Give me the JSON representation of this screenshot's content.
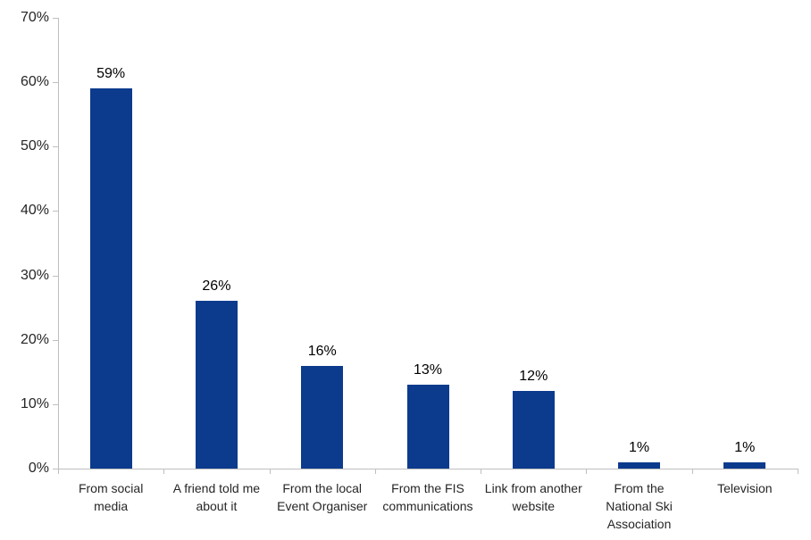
{
  "chart_data": {
    "type": "bar",
    "title": "",
    "xlabel": "",
    "ylabel": "",
    "categories": [
      "From social\nmedia",
      "A friend told me\nabout it",
      "From the local\nEvent Organiser",
      "From the FIS\ncommunications",
      "Link from another\nwebsite",
      "From the\nNational Ski\nAssociation",
      "Television"
    ],
    "values": [
      59,
      26,
      16,
      13,
      12,
      1,
      1
    ],
    "data_labels": [
      "59%",
      "26%",
      "16%",
      "13%",
      "12%",
      "1%",
      "1%"
    ],
    "ylim": [
      0,
      70
    ],
    "ytick_step": 10,
    "ytick_labels": [
      "0%",
      "10%",
      "20%",
      "30%",
      "40%",
      "50%",
      "60%",
      "70%"
    ],
    "grid": false,
    "legend": false,
    "colors": {
      "bar": "#0C3B8D",
      "axis": "#BFBFBF",
      "tick_text": "#262626",
      "value_text": "#000000",
      "background": "#FFFFFF"
    }
  }
}
